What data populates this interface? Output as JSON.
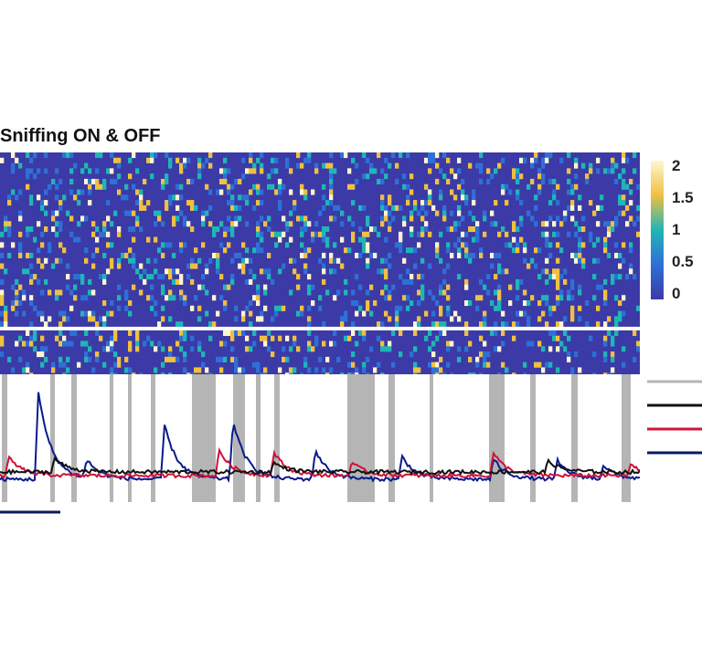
{
  "chart_data": {
    "type": "heatmap",
    "title": "Sniffing ON & OFF",
    "colorbar": {
      "min": 0,
      "max": 2,
      "ticks": [
        "2",
        "1.5",
        "1",
        "0.5",
        "0"
      ],
      "colors": [
        "#3b3aa6",
        "#2f6fd6",
        "#1fb6b6",
        "#f0c040",
        "#fff6d0"
      ]
    },
    "heatmap": {
      "rows": 42,
      "cols": 175,
      "split_after_row": 33
    },
    "sniff_periods": [
      [
        2,
        8
      ],
      [
        55,
        60
      ],
      [
        78,
        84
      ],
      [
        120,
        124
      ],
      [
        140,
        144
      ],
      [
        165,
        170
      ],
      [
        210,
        236
      ],
      [
        255,
        268
      ],
      [
        280,
        285
      ],
      [
        300,
        306
      ],
      [
        380,
        410
      ],
      [
        425,
        432
      ],
      [
        470,
        474
      ],
      [
        535,
        552
      ],
      [
        580,
        586
      ],
      [
        625,
        632
      ],
      [
        680,
        690
      ]
    ],
    "traces": {
      "x_range": [
        0,
        700
      ],
      "y_range": [
        0,
        1
      ],
      "series": [
        {
          "color": "#0a1a8c",
          "peaks": [
            [
              42,
              0.95
            ],
            [
              95,
              0.2
            ],
            [
              180,
              0.6
            ],
            [
              255,
              0.65
            ],
            [
              345,
              0.32
            ],
            [
              440,
              0.25
            ],
            [
              540,
              0.22
            ],
            [
              610,
              0.2
            ],
            [
              660,
              0.15
            ]
          ]
        },
        {
          "color": "#d0103a",
          "peaks": [
            [
              10,
              0.2
            ],
            [
              240,
              0.28
            ],
            [
              300,
              0.25
            ],
            [
              385,
              0.15
            ],
            [
              540,
              0.25
            ],
            [
              690,
              0.12
            ]
          ]
        },
        {
          "color": "#111111",
          "peaks": [
            [
              60,
              0.15
            ],
            [
              300,
              0.1
            ],
            [
              600,
              0.12
            ]
          ]
        }
      ]
    },
    "legend": [
      {
        "color": "#b5b5b5"
      },
      {
        "color": "#111111"
      },
      {
        "color": "#d0103a"
      },
      {
        "color": "#0a1a5e"
      }
    ],
    "scalebar": {
      "color": "#0a1a5e"
    }
  }
}
